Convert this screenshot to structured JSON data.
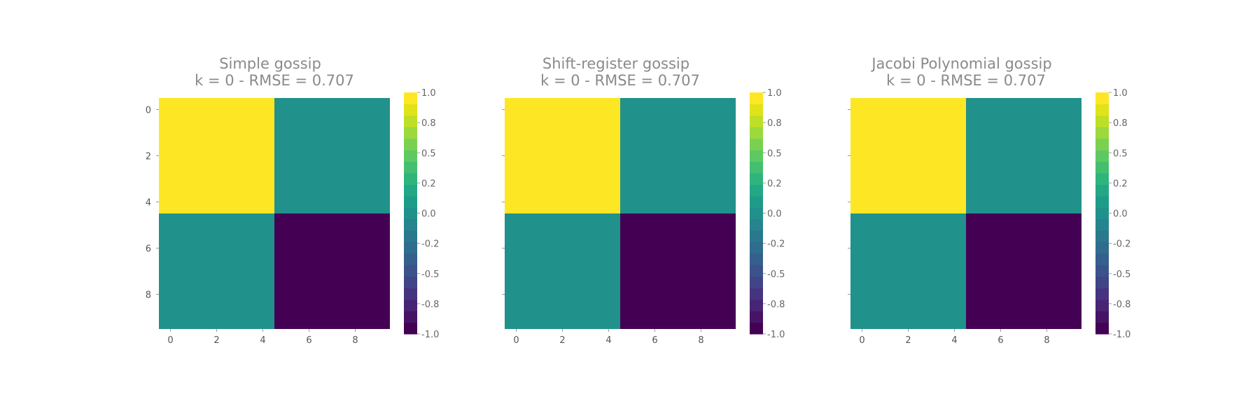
{
  "figure": {
    "colorbar_colors": [
      "#440154",
      "#471365",
      "#482475",
      "#463480",
      "#414487",
      "#3b528b",
      "#355f8d",
      "#2f6c8e",
      "#2a788e",
      "#25848e",
      "#21918c",
      "#1e9c89",
      "#22a884",
      "#2fb47c",
      "#44bf70",
      "#5ec962",
      "#7ad151",
      "#9bd93c",
      "#bddf26",
      "#dfe318",
      "#fde725"
    ],
    "cell_colors": {
      "1": "#fde725",
      "0": "#21918c",
      "-1": "#440154"
    }
  },
  "chart_data": [
    {
      "type": "heatmap",
      "title_line1": "Simple gossip",
      "title_line2": "k = 0 - RMSE = 0.707",
      "xlim": [
        -0.5,
        9.5
      ],
      "ylim": [
        -0.5,
        9.5
      ],
      "x_ticks": [
        "0",
        "2",
        "4",
        "6",
        "8"
      ],
      "y_ticks": [
        "0",
        "2",
        "4",
        "6",
        "8"
      ],
      "show_y_tick_labels": true,
      "colorbar_ticks": [
        "1.0",
        "0.8",
        "0.5",
        "0.2",
        "0.0",
        "-0.2",
        "-0.5",
        "-0.8",
        "-1.0"
      ],
      "blocks": [
        {
          "rows": [
            0,
            4
          ],
          "cols": [
            0,
            4
          ],
          "value": 1
        },
        {
          "rows": [
            0,
            4
          ],
          "cols": [
            5,
            9
          ],
          "value": 0
        },
        {
          "rows": [
            5,
            9
          ],
          "cols": [
            0,
            4
          ],
          "value": 0
        },
        {
          "rows": [
            5,
            9
          ],
          "cols": [
            5,
            9
          ],
          "value": -1
        }
      ]
    },
    {
      "type": "heatmap",
      "title_line1": "Shift-register gossip",
      "title_line2": "k = 0 - RMSE = 0.707",
      "xlim": [
        -0.5,
        9.5
      ],
      "ylim": [
        -0.5,
        9.5
      ],
      "x_ticks": [
        "0",
        "2",
        "4",
        "6",
        "8"
      ],
      "y_ticks": [
        "0",
        "2",
        "4",
        "6",
        "8"
      ],
      "show_y_tick_labels": false,
      "colorbar_ticks": [
        "1.0",
        "0.8",
        "0.5",
        "0.2",
        "0.0",
        "-0.2",
        "-0.5",
        "-0.8",
        "-1.0"
      ],
      "blocks": [
        {
          "rows": [
            0,
            4
          ],
          "cols": [
            0,
            4
          ],
          "value": 1
        },
        {
          "rows": [
            0,
            4
          ],
          "cols": [
            5,
            9
          ],
          "value": 0
        },
        {
          "rows": [
            5,
            9
          ],
          "cols": [
            0,
            4
          ],
          "value": 0
        },
        {
          "rows": [
            5,
            9
          ],
          "cols": [
            5,
            9
          ],
          "value": -1
        }
      ]
    },
    {
      "type": "heatmap",
      "title_line1": "Jacobi Polynomial gossip",
      "title_line2": "k = 0 - RMSE = 0.707",
      "xlim": [
        -0.5,
        9.5
      ],
      "ylim": [
        -0.5,
        9.5
      ],
      "x_ticks": [
        "0",
        "2",
        "4",
        "6",
        "8"
      ],
      "y_ticks": [
        "0",
        "2",
        "4",
        "6",
        "8"
      ],
      "show_y_tick_labels": false,
      "colorbar_ticks": [
        "1.0",
        "0.8",
        "0.5",
        "0.2",
        "0.0",
        "-0.2",
        "-0.5",
        "-0.8",
        "-1.0"
      ],
      "blocks": [
        {
          "rows": [
            0,
            4
          ],
          "cols": [
            0,
            4
          ],
          "value": 1
        },
        {
          "rows": [
            0,
            4
          ],
          "cols": [
            5,
            9
          ],
          "value": 0
        },
        {
          "rows": [
            5,
            9
          ],
          "cols": [
            0,
            4
          ],
          "value": 0
        },
        {
          "rows": [
            5,
            9
          ],
          "cols": [
            5,
            9
          ],
          "value": -1
        }
      ]
    }
  ]
}
